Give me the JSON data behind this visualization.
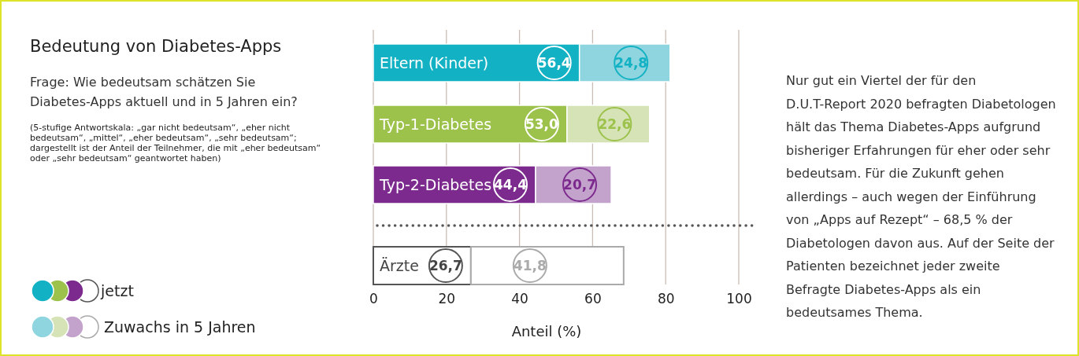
{
  "chart_data": {
    "type": "bar",
    "orientation": "horizontal",
    "stacked": true,
    "title": "Bedeutung von Diabetes-Apps",
    "subtitle": "Frage: Wie bedeutsam schätzen Sie Diabetes-Apps aktuell und in 5 Jahren ein?",
    "xlabel": "Anteil (%)",
    "categories": [
      "Eltern (Kinder)",
      "Typ-1-Diabetes",
      "Typ-2-Diabetes",
      "Ärzte"
    ],
    "series": [
      {
        "name": "jetzt",
        "colors": [
          "#12b1c3",
          "#9cc24b",
          "#7d2a8f",
          "#ffffff"
        ],
        "values": [
          56.4,
          53.0,
          44.4,
          26.7
        ],
        "value_labels": [
          "56,4",
          "53,0",
          "44,4",
          "26,7"
        ]
      },
      {
        "name": "Zuwachs in 5 Jahren",
        "colors": [
          "#8fd5df",
          "#d5e3b6",
          "#c3a2cb",
          "#ffffff"
        ],
        "values": [
          24.8,
          22.6,
          20.7,
          41.8
        ],
        "value_labels": [
          "24,8",
          "22,6",
          "20,7",
          "41,8"
        ]
      }
    ],
    "xlim": [
      0,
      100
    ],
    "xticks": [
      0,
      20,
      40,
      60,
      80,
      100
    ],
    "grid": "x",
    "legend": "bottom left",
    "annotations": [
      "(5-stufige Antwortskala: „gar nicht bedeutsam“, „eher nicht bedeutsam“, „mittel“, „eher bedeutsam“, „sehr bedeutsam“; dargestellt ist der Anteil der Teilnehmer, die mit „eher bedeutsam“ oder „sehr bedeutsam“ geantwortet haben)",
      "Nur gut ein Viertel der für den D.U.T-Report 2020 befragten Diabetologen hält das Thema Diabetes-Apps aufgrund bisheriger Erfahrungen für eher oder sehr bedeutsam. Für die Zukunft gehen allerdings – auch wegen der Einführung von „Apps auf Rezept“ – 68,5 % der Diabetologen davon aus. Auf der Seite der Patienten bezeichnet jeder zweite Befragte Diabetes-Apps als ein bedeutsames Thema."
    ]
  }
}
